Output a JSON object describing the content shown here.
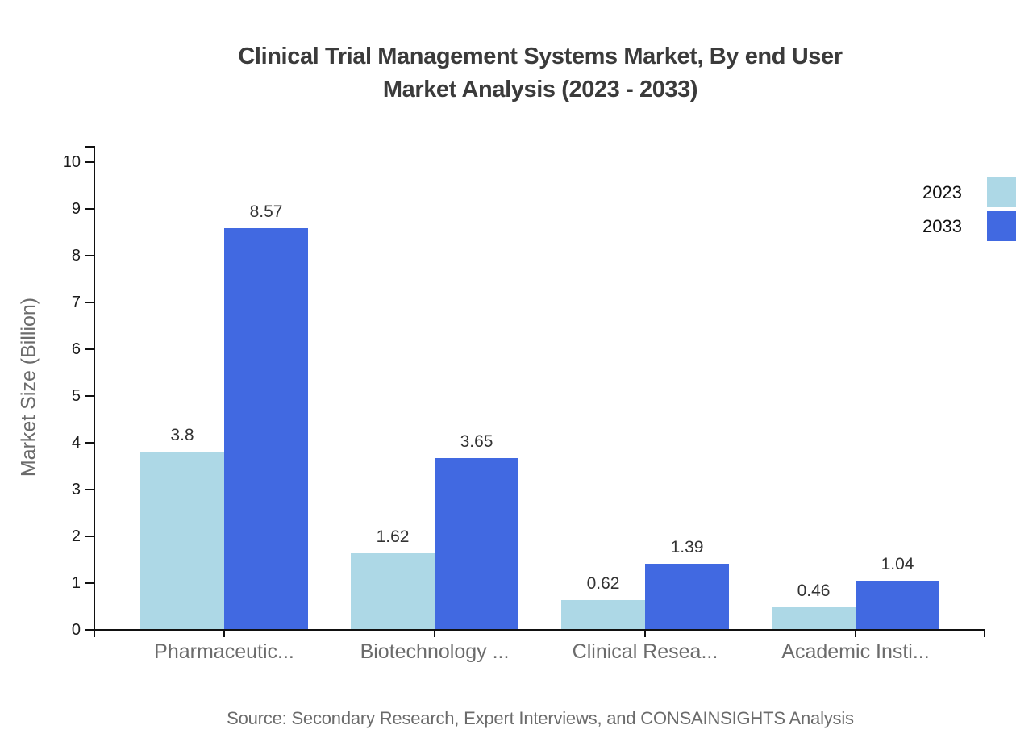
{
  "title": {
    "line1": "Clinical Trial Management Systems Market, By end User",
    "line2": "Market Analysis (2023 - 2033)"
  },
  "source": "Source: Secondary Research, Expert Interviews, and CONSAINSIGHTS Analysis",
  "chart_data": {
    "type": "bar",
    "title": "Clinical Trial Management Systems Market, By end User Market Analysis (2023 - 2033)",
    "categories": [
      "Pharmaceutic...",
      "Biotechnology ...",
      "Clinical Resea...",
      "Academic Insti..."
    ],
    "series": [
      {
        "name": "2023",
        "color": "#ADD8E6",
        "values": [
          3.8,
          1.62,
          0.62,
          0.46
        ]
      },
      {
        "name": "2033",
        "color": "#4169E1",
        "values": [
          8.57,
          3.65,
          1.39,
          1.04
        ]
      }
    ],
    "xlabel": "",
    "ylabel": "Market Size (Billion)",
    "ylim": [
      0,
      10
    ],
    "ytick_step": 1,
    "grid": false,
    "legend_position": "top-right",
    "value_labels": true
  }
}
